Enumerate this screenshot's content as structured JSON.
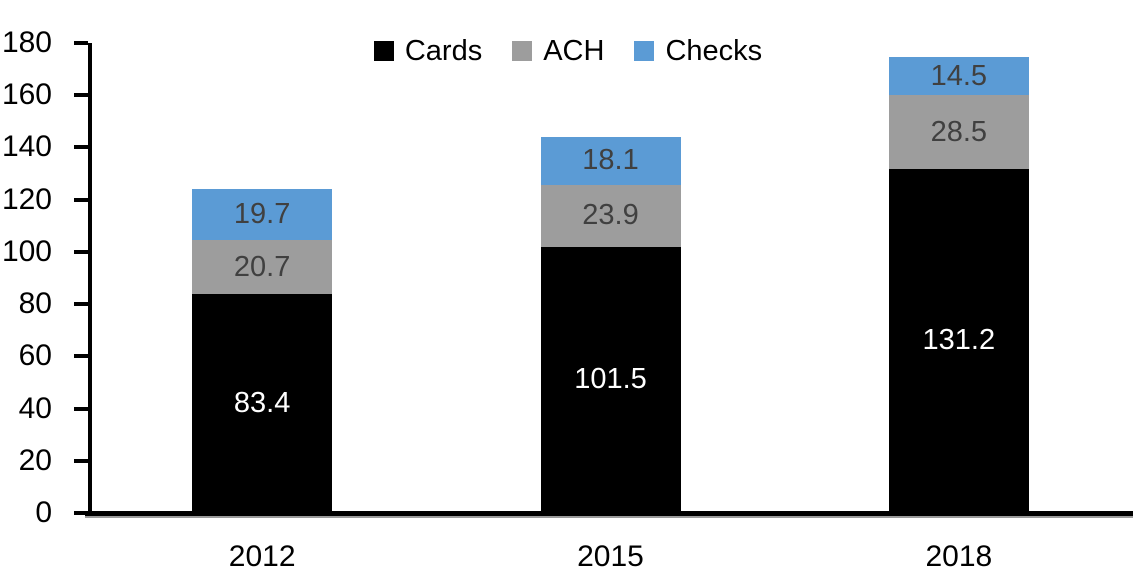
{
  "chart_data": {
    "type": "bar",
    "stacked": true,
    "title": "",
    "xlabel": "",
    "ylabel": "",
    "categories": [
      "2012",
      "2015",
      "2018"
    ],
    "series": [
      {
        "name": "Cards",
        "color": "#000000",
        "label_color": "#FFFFFF",
        "values": [
          83.4,
          101.5,
          131.2
        ]
      },
      {
        "name": "ACH",
        "color": "#9D9D9D",
        "label_color": "#404040",
        "values": [
          20.7,
          23.9,
          28.5
        ]
      },
      {
        "name": "Checks",
        "color": "#5B9BD5",
        "label_color": "#404040",
        "values": [
          19.7,
          18.1,
          14.5
        ]
      }
    ],
    "ylim": [
      0,
      180
    ],
    "yticks": [
      0,
      20,
      40,
      60,
      80,
      100,
      120,
      140,
      160,
      180
    ],
    "legend_position": "top",
    "legend_entries": [
      "Cards",
      "ACH",
      "Checks"
    ],
    "grid": false,
    "data_labels": true
  },
  "colors": {
    "background": "#FFFFFF",
    "axis": "#000000",
    "axis_shadow": "#9B9B9B",
    "tick_label": "#000000",
    "legend_text": "#000000"
  }
}
